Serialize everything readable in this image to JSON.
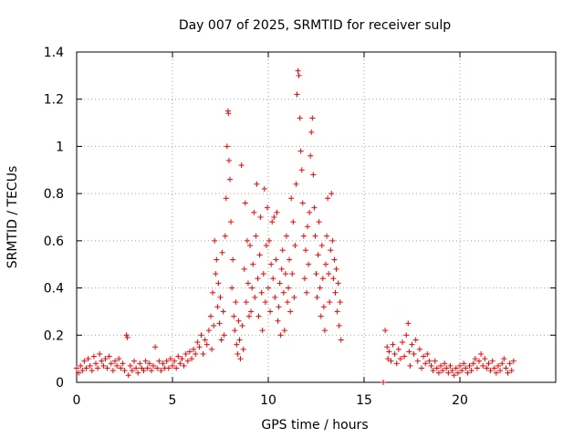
{
  "chart_data": {
    "type": "scatter",
    "title": "Day 007 of 2025, SRMTID for receiver sulp",
    "xlabel": "GPS time / hours",
    "ylabel": "SRMTID / TECUs",
    "xlim": [
      0,
      25
    ],
    "ylim": [
      0,
      1.4
    ],
    "xticks": [
      0,
      5,
      10,
      15,
      20
    ],
    "xtick_labels": [
      "0",
      "5",
      "10",
      "15",
      "20"
    ],
    "yticks": [
      0,
      0.2,
      0.4,
      0.6,
      0.8,
      1.0,
      1.2,
      1.4
    ],
    "ytick_labels": [
      "0",
      "0.2",
      "0.4",
      "0.6",
      "0.8",
      "1",
      "1.2",
      "1.4"
    ],
    "grid": true,
    "marker": "plus",
    "marker_color": "#ff0000",
    "series": [
      {
        "name": "SRMTID",
        "points": [
          [
            0.0,
            0.06
          ],
          [
            0.1,
            0.04
          ],
          [
            0.2,
            0.07
          ],
          [
            0.3,
            0.05
          ],
          [
            0.4,
            0.09
          ],
          [
            0.5,
            0.06
          ],
          [
            0.6,
            0.1
          ],
          [
            0.7,
            0.07
          ],
          [
            0.8,
            0.05
          ],
          [
            0.9,
            0.11
          ],
          [
            1.0,
            0.08
          ],
          [
            1.1,
            0.06
          ],
          [
            1.2,
            0.12
          ],
          [
            1.3,
            0.09
          ],
          [
            1.4,
            0.07
          ],
          [
            1.5,
            0.1
          ],
          [
            1.6,
            0.06
          ],
          [
            1.7,
            0.11
          ],
          [
            1.8,
            0.08
          ],
          [
            1.9,
            0.05
          ],
          [
            2.0,
            0.09
          ],
          [
            2.1,
            0.07
          ],
          [
            2.2,
            0.1
          ],
          [
            2.3,
            0.06
          ],
          [
            2.4,
            0.08
          ],
          [
            2.5,
            0.05
          ],
          [
            2.6,
            0.2
          ],
          [
            2.65,
            0.19
          ],
          [
            2.7,
            0.03
          ],
          [
            2.8,
            0.07
          ],
          [
            2.9,
            0.05
          ],
          [
            3.0,
            0.09
          ],
          [
            3.1,
            0.06
          ],
          [
            3.2,
            0.04
          ],
          [
            3.3,
            0.08
          ],
          [
            3.4,
            0.06
          ],
          [
            3.5,
            0.05
          ],
          [
            3.6,
            0.09
          ],
          [
            3.7,
            0.06
          ],
          [
            3.8,
            0.08
          ],
          [
            3.9,
            0.05
          ],
          [
            4.0,
            0.07
          ],
          [
            4.1,
            0.15
          ],
          [
            4.2,
            0.06
          ],
          [
            4.3,
            0.09
          ],
          [
            4.4,
            0.05
          ],
          [
            4.5,
            0.08
          ],
          [
            4.6,
            0.06
          ],
          [
            4.7,
            0.09
          ],
          [
            4.8,
            0.06
          ],
          [
            4.9,
            0.1
          ],
          [
            5.0,
            0.07
          ],
          [
            5.1,
            0.09
          ],
          [
            5.2,
            0.06
          ],
          [
            5.3,
            0.11
          ],
          [
            5.4,
            0.08
          ],
          [
            5.5,
            0.1
          ],
          [
            5.6,
            0.07
          ],
          [
            5.7,
            0.12
          ],
          [
            5.8,
            0.09
          ],
          [
            5.9,
            0.13
          ],
          [
            6.0,
            0.1
          ],
          [
            6.1,
            0.14
          ],
          [
            6.2,
            0.12
          ],
          [
            6.3,
            0.17
          ],
          [
            6.4,
            0.15
          ],
          [
            6.5,
            0.2
          ],
          [
            6.6,
            0.12
          ],
          [
            6.7,
            0.18
          ],
          [
            6.8,
            0.16
          ],
          [
            6.9,
            0.22
          ],
          [
            7.0,
            0.28
          ],
          [
            7.05,
            0.14
          ],
          [
            7.1,
            0.38
          ],
          [
            7.15,
            0.24
          ],
          [
            7.2,
            0.6
          ],
          [
            7.25,
            0.46
          ],
          [
            7.3,
            0.52
          ],
          [
            7.35,
            0.32
          ],
          [
            7.4,
            0.42
          ],
          [
            7.45,
            0.25
          ],
          [
            7.5,
            0.36
          ],
          [
            7.55,
            0.18
          ],
          [
            7.6,
            0.55
          ],
          [
            7.65,
            0.3
          ],
          [
            7.7,
            0.2
          ],
          [
            7.75,
            0.62
          ],
          [
            7.8,
            0.78
          ],
          [
            7.85,
            1.0
          ],
          [
            7.9,
            1.15
          ],
          [
            7.92,
            1.14
          ],
          [
            7.95,
            0.94
          ],
          [
            8.0,
            0.86
          ],
          [
            8.05,
            0.68
          ],
          [
            8.1,
            0.4
          ],
          [
            8.15,
            0.52
          ],
          [
            8.2,
            0.28
          ],
          [
            8.25,
            0.22
          ],
          [
            8.3,
            0.34
          ],
          [
            8.35,
            0.16
          ],
          [
            8.4,
            0.12
          ],
          [
            8.45,
            0.26
          ],
          [
            8.5,
            0.18
          ],
          [
            8.55,
            0.1
          ],
          [
            8.6,
            0.92
          ],
          [
            8.65,
            0.24
          ],
          [
            8.7,
            0.14
          ],
          [
            8.75,
            0.48
          ],
          [
            8.8,
            0.76
          ],
          [
            8.85,
            0.34
          ],
          [
            8.9,
            0.6
          ],
          [
            8.95,
            0.42
          ],
          [
            9.0,
            0.28
          ],
          [
            9.05,
            0.58
          ],
          [
            9.1,
            0.3
          ],
          [
            9.15,
            0.4
          ],
          [
            9.2,
            0.5
          ],
          [
            9.25,
            0.72
          ],
          [
            9.3,
            0.36
          ],
          [
            9.35,
            0.62
          ],
          [
            9.4,
            0.84
          ],
          [
            9.45,
            0.44
          ],
          [
            9.5,
            0.28
          ],
          [
            9.55,
            0.54
          ],
          [
            9.6,
            0.7
          ],
          [
            9.65,
            0.38
          ],
          [
            9.7,
            0.22
          ],
          [
            9.75,
            0.46
          ],
          [
            9.8,
            0.82
          ],
          [
            9.85,
            0.34
          ],
          [
            9.9,
            0.58
          ],
          [
            9.95,
            0.74
          ],
          [
            10.0,
            0.4
          ],
          [
            10.05,
            0.6
          ],
          [
            10.1,
            0.3
          ],
          [
            10.15,
            0.5
          ],
          [
            10.2,
            0.68
          ],
          [
            10.25,
            0.44
          ],
          [
            10.3,
            0.7
          ],
          [
            10.35,
            0.36
          ],
          [
            10.4,
            0.52
          ],
          [
            10.45,
            0.72
          ],
          [
            10.5,
            0.26
          ],
          [
            10.55,
            0.32
          ],
          [
            10.6,
            0.42
          ],
          [
            10.65,
            0.2
          ],
          [
            10.7,
            0.48
          ],
          [
            10.75,
            0.56
          ],
          [
            10.8,
            0.38
          ],
          [
            10.85,
            0.22
          ],
          [
            10.9,
            0.46
          ],
          [
            10.95,
            0.62
          ],
          [
            11.0,
            0.34
          ],
          [
            11.05,
            0.4
          ],
          [
            11.1,
            0.52
          ],
          [
            11.15,
            0.3
          ],
          [
            11.2,
            0.78
          ],
          [
            11.25,
            0.46
          ],
          [
            11.3,
            0.68
          ],
          [
            11.35,
            0.36
          ],
          [
            11.4,
            0.58
          ],
          [
            11.45,
            0.84
          ],
          [
            11.5,
            1.22
          ],
          [
            11.55,
            1.32
          ],
          [
            11.6,
            1.3
          ],
          [
            11.65,
            1.12
          ],
          [
            11.7,
            0.98
          ],
          [
            11.75,
            0.9
          ],
          [
            11.8,
            0.76
          ],
          [
            11.85,
            0.62
          ],
          [
            11.9,
            0.44
          ],
          [
            11.95,
            0.56
          ],
          [
            12.0,
            0.38
          ],
          [
            12.05,
            0.66
          ],
          [
            12.1,
            0.5
          ],
          [
            12.15,
            0.72
          ],
          [
            12.2,
            0.96
          ],
          [
            12.25,
            1.06
          ],
          [
            12.3,
            1.12
          ],
          [
            12.35,
            0.88
          ],
          [
            12.4,
            0.74
          ],
          [
            12.45,
            0.62
          ],
          [
            12.5,
            0.46
          ],
          [
            12.55,
            0.36
          ],
          [
            12.6,
            0.54
          ],
          [
            12.65,
            0.68
          ],
          [
            12.7,
            0.4
          ],
          [
            12.75,
            0.28
          ],
          [
            12.8,
            0.58
          ],
          [
            12.85,
            0.44
          ],
          [
            12.9,
            0.32
          ],
          [
            12.95,
            0.22
          ],
          [
            13.0,
            0.5
          ],
          [
            13.05,
            0.62
          ],
          [
            13.1,
            0.78
          ],
          [
            13.15,
            0.46
          ],
          [
            13.2,
            0.34
          ],
          [
            13.25,
            0.56
          ],
          [
            13.3,
            0.8
          ],
          [
            13.35,
            0.6
          ],
          [
            13.4,
            0.44
          ],
          [
            13.45,
            0.52
          ],
          [
            13.5,
            0.38
          ],
          [
            13.55,
            0.48
          ],
          [
            13.6,
            0.3
          ],
          [
            13.65,
            0.42
          ],
          [
            13.7,
            0.24
          ],
          [
            13.75,
            0.34
          ],
          [
            13.8,
            0.18
          ],
          [
            16.0,
            0.0
          ],
          [
            16.1,
            0.22
          ],
          [
            16.2,
            0.15
          ],
          [
            16.25,
            0.1
          ],
          [
            16.3,
            0.13
          ],
          [
            16.4,
            0.09
          ],
          [
            16.5,
            0.16
          ],
          [
            16.6,
            0.12
          ],
          [
            16.7,
            0.08
          ],
          [
            16.8,
            0.14
          ],
          [
            16.9,
            0.1
          ],
          [
            17.0,
            0.17
          ],
          [
            17.1,
            0.11
          ],
          [
            17.2,
            0.2
          ],
          [
            17.3,
            0.25
          ],
          [
            17.35,
            0.13
          ],
          [
            17.4,
            0.07
          ],
          [
            17.5,
            0.16
          ],
          [
            17.6,
            0.12
          ],
          [
            17.7,
            0.18
          ],
          [
            17.8,
            0.09
          ],
          [
            17.9,
            0.14
          ],
          [
            18.0,
            0.06
          ],
          [
            18.1,
            0.11
          ],
          [
            18.2,
            0.08
          ],
          [
            18.3,
            0.12
          ],
          [
            18.4,
            0.09
          ],
          [
            18.5,
            0.07
          ],
          [
            18.6,
            0.05
          ],
          [
            18.7,
            0.09
          ],
          [
            18.8,
            0.06
          ],
          [
            18.9,
            0.04
          ],
          [
            19.0,
            0.07
          ],
          [
            19.1,
            0.05
          ],
          [
            19.2,
            0.08
          ],
          [
            19.3,
            0.06
          ],
          [
            19.4,
            0.04
          ],
          [
            19.5,
            0.07
          ],
          [
            19.6,
            0.05
          ],
          [
            19.7,
            0.03
          ],
          [
            19.8,
            0.06
          ],
          [
            19.9,
            0.04
          ],
          [
            20.0,
            0.07
          ],
          [
            20.1,
            0.05
          ],
          [
            20.2,
            0.08
          ],
          [
            20.3,
            0.06
          ],
          [
            20.4,
            0.04
          ],
          [
            20.5,
            0.07
          ],
          [
            20.6,
            0.05
          ],
          [
            20.7,
            0.08
          ],
          [
            20.8,
            0.1
          ],
          [
            20.9,
            0.06
          ],
          [
            21.0,
            0.09
          ],
          [
            21.1,
            0.12
          ],
          [
            21.2,
            0.07
          ],
          [
            21.3,
            0.1
          ],
          [
            21.4,
            0.06
          ],
          [
            21.5,
            0.08
          ],
          [
            21.6,
            0.05
          ],
          [
            21.7,
            0.09
          ],
          [
            21.8,
            0.06
          ],
          [
            21.9,
            0.04
          ],
          [
            22.0,
            0.07
          ],
          [
            22.1,
            0.05
          ],
          [
            22.2,
            0.08
          ],
          [
            22.3,
            0.1
          ],
          [
            22.4,
            0.06
          ],
          [
            22.5,
            0.04
          ],
          [
            22.6,
            0.08
          ],
          [
            22.7,
            0.05
          ],
          [
            22.8,
            0.09
          ]
        ]
      }
    ]
  }
}
